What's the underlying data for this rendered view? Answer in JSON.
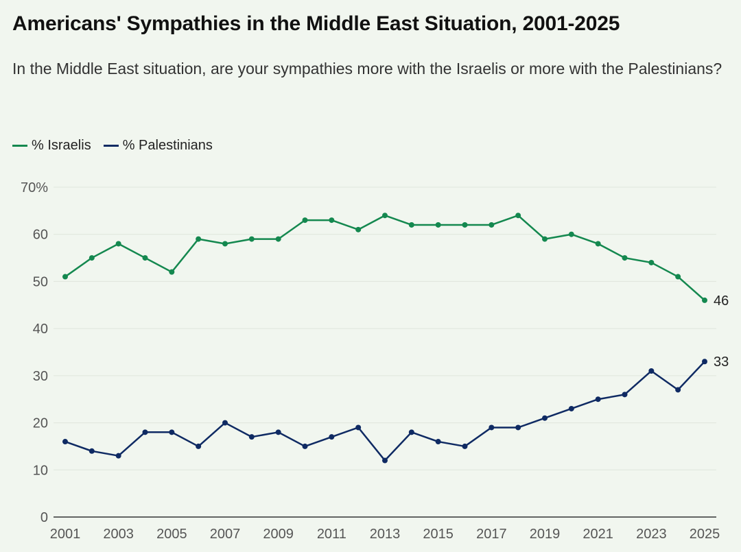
{
  "chart_data": {
    "type": "line",
    "title": "Americans' Sympathies in the Middle East Situation, 2001-2025",
    "subtitle": "In the Middle East situation, are your sympathies more with the Israelis or more with the Palestinians?",
    "x": [
      2001,
      2002,
      2003,
      2004,
      2005,
      2006,
      2007,
      2008,
      2009,
      2010,
      2011,
      2012,
      2013,
      2014,
      2015,
      2016,
      2017,
      2018,
      2019,
      2020,
      2021,
      2022,
      2023,
      2024,
      2025
    ],
    "x_tick_labels": [
      "2001",
      "2003",
      "2005",
      "2007",
      "2009",
      "2011",
      "2013",
      "2015",
      "2017",
      "2019",
      "2021",
      "2023",
      "2025"
    ],
    "y_tick_labels": [
      "0",
      "10",
      "20",
      "30",
      "40",
      "50",
      "60",
      "70%"
    ],
    "ylim": [
      0,
      70
    ],
    "grid": true,
    "legend_position": "top-left",
    "series": [
      {
        "name": "% Israelis",
        "color": "#14884f",
        "values": [
          51,
          55,
          58,
          55,
          52,
          59,
          58,
          59,
          59,
          63,
          63,
          61,
          64,
          62,
          62,
          62,
          62,
          64,
          59,
          60,
          58,
          55,
          54,
          51,
          46
        ],
        "end_label": "46"
      },
      {
        "name": "% Palestinians",
        "color": "#0f2a63",
        "values": [
          16,
          14,
          13,
          18,
          18,
          15,
          20,
          17,
          18,
          15,
          17,
          19,
          12,
          18,
          16,
          15,
          19,
          19,
          21,
          23,
          25,
          26,
          31,
          27,
          33
        ],
        "end_label": "33"
      }
    ]
  },
  "colors": {
    "background": "#f1f6ef",
    "grid": "#dfe5dc",
    "axis": "#333333"
  }
}
